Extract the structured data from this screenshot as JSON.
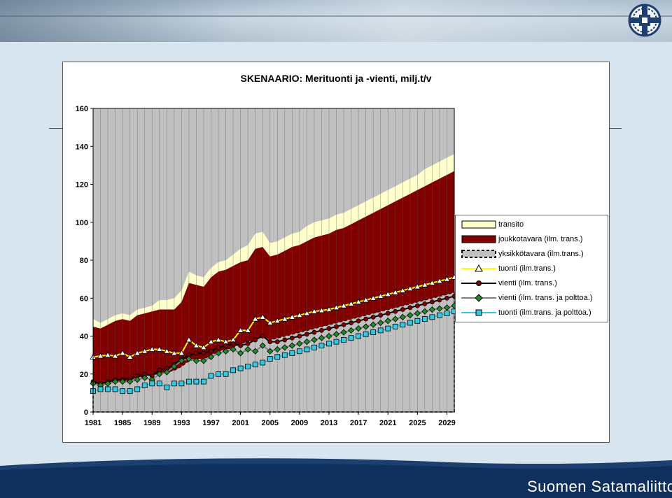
{
  "brand": {
    "name": "Suomen Satamaliitto"
  },
  "colors": {
    "transito": "#ffffcc",
    "joukkotavara": "#800000",
    "yksikkotavara": "#c0c0c0",
    "tuonti": "#ffff00",
    "vienti": "#000000",
    "vienti_polttoa": "#1e8c2b",
    "tuonti_polttoa": "#35c8e0",
    "plot_background": "#c0c0c0"
  },
  "chart_data": {
    "type": "area",
    "title": "SKENAARIO: Merituonti ja -vienti, milj.t/v",
    "xlabel": "",
    "ylabel": "",
    "ylim": [
      0,
      160
    ],
    "yticks": [
      "0",
      "20",
      "40",
      "60",
      "80",
      "100",
      "120",
      "140",
      "160"
    ],
    "xticks": [
      "1981",
      "1985",
      "1989",
      "1993",
      "1997",
      "2001",
      "2005",
      "2009",
      "2013",
      "2017",
      "2021",
      "2025",
      "2029"
    ],
    "grid": "vertical",
    "legend_position": "right",
    "x": [
      1981,
      1982,
      1983,
      1984,
      1985,
      1986,
      1987,
      1988,
      1989,
      1990,
      1991,
      1992,
      1993,
      1994,
      1995,
      1996,
      1997,
      1998,
      1999,
      2000,
      2001,
      2002,
      2003,
      2004,
      2005,
      2006,
      2007,
      2008,
      2009,
      2010,
      2011,
      2012,
      2013,
      2014,
      2015,
      2016,
      2017,
      2018,
      2019,
      2020,
      2021,
      2022,
      2023,
      2024,
      2025,
      2026,
      2027,
      2028,
      2029,
      2030
    ],
    "stacked_series": [
      {
        "name": "yksikkötavara (ilm.trans.)",
        "values": [
          15,
          14,
          15,
          16,
          16,
          17,
          18,
          19,
          20,
          20,
          21,
          22,
          24,
          27,
          28,
          28,
          30,
          32,
          33,
          34,
          36,
          37,
          38,
          40,
          38,
          39,
          40,
          41,
          42,
          43,
          44,
          45,
          46,
          47,
          48,
          49,
          50,
          51,
          52,
          53,
          54,
          55,
          56,
          57,
          58,
          59,
          60,
          61,
          62,
          63
        ]
      },
      {
        "name": "joukkotavara (ilm. trans.)",
        "values": [
          30,
          30,
          31,
          32,
          33,
          31,
          33,
          33,
          33,
          34,
          33,
          32,
          34,
          41,
          39,
          38,
          41,
          42,
          42,
          43,
          43,
          43,
          48,
          47,
          44,
          44,
          45,
          46,
          46,
          47,
          48,
          48,
          48,
          49,
          49,
          50,
          51,
          52,
          53,
          54,
          55,
          56,
          57,
          58,
          59,
          60,
          61,
          62,
          63,
          64
        ]
      },
      {
        "name": "transito",
        "values": [
          4,
          3,
          3,
          3,
          3,
          3,
          3,
          3,
          3,
          5,
          5,
          6,
          6,
          6,
          5,
          5,
          5,
          5,
          5,
          6,
          7,
          8,
          8,
          8,
          7,
          7,
          7,
          7,
          7,
          8,
          8,
          8,
          8,
          8,
          8,
          8,
          8,
          8,
          8,
          8,
          8,
          8,
          8,
          8,
          8,
          9,
          9,
          9,
          9,
          9
        ]
      }
    ],
    "line_series": [
      {
        "name": "tuonti (ilm.trans.)",
        "values": [
          29,
          29.5,
          30,
          29.5,
          31,
          29,
          31,
          32,
          33,
          33,
          32,
          31,
          31,
          38,
          35,
          34,
          37,
          38,
          37,
          38,
          43,
          43,
          49,
          50,
          47,
          48,
          49,
          50,
          51,
          52,
          53,
          53.5,
          54,
          55,
          56,
          57,
          58,
          59,
          60,
          61,
          62,
          63,
          64,
          65,
          66,
          67,
          68,
          69,
          70,
          71
        ]
      },
      {
        "name": "vienti (ilm. trans.)",
        "values": [
          16,
          15,
          16,
          17,
          17,
          18,
          19,
          20,
          19,
          22,
          23,
          25,
          28,
          30,
          31,
          31,
          32,
          34,
          35,
          36,
          35,
          36,
          38,
          40,
          37,
          37,
          38,
          39,
          40,
          41,
          42,
          43,
          44,
          45,
          46,
          47,
          48,
          49,
          50,
          51,
          52,
          53,
          54,
          55,
          56,
          57,
          58,
          59,
          60,
          61
        ]
      },
      {
        "name": "vienti (ilm. trans. ja polttoa.)",
        "values": [
          15,
          14,
          15,
          16,
          16,
          16,
          17,
          18,
          17,
          20,
          21,
          24,
          27,
          28,
          27,
          27,
          29,
          31,
          32,
          33,
          31,
          33,
          32,
          35,
          32,
          33,
          34,
          35,
          36,
          37,
          38,
          39,
          40,
          41,
          42,
          43,
          44,
          45,
          46,
          47,
          48,
          49,
          50,
          51,
          52,
          53,
          54,
          54.5,
          55,
          56
        ]
      },
      {
        "name": "tuonti (ilm.trans. ja polttoa.)",
        "values": [
          11,
          12,
          12,
          12,
          11,
          11,
          12,
          14,
          15,
          15,
          13,
          15,
          15,
          16,
          16,
          16,
          19,
          20,
          20,
          22,
          23,
          24,
          25,
          26,
          28,
          29,
          30,
          31,
          32,
          33,
          34,
          35,
          36,
          37,
          38,
          39,
          40,
          41,
          42,
          43,
          44,
          45,
          46,
          47,
          48,
          49,
          50,
          51,
          52,
          53
        ]
      }
    ],
    "legend": [
      "transito",
      "joukkotavara (ilm. trans.)",
      "yksikkötavara (ilm.trans.)",
      "tuonti (ilm.trans.)",
      "vienti (ilm. trans.)",
      "vienti (ilm. trans. ja polttoa.)",
      "tuonti (ilm.trans. ja polttoa.)"
    ]
  }
}
